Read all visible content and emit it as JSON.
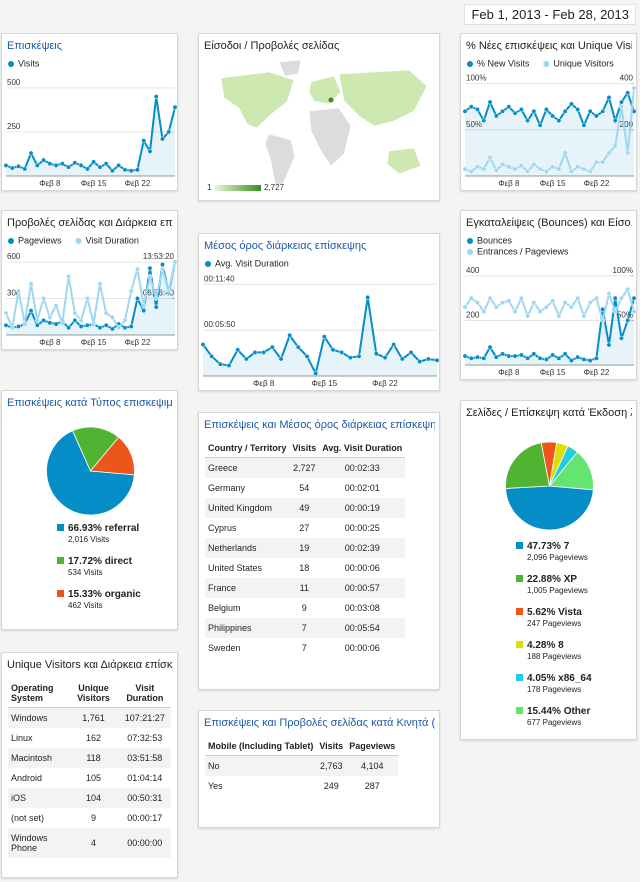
{
  "date_range": "Feb 1, 2013 - Feb 28, 2013",
  "chart_data": [
    {
      "type": "line",
      "title": "Επισκέψεις",
      "categories": [
        null,
        null,
        null,
        null,
        null,
        null,
        null,
        "Φεβ 8",
        null,
        null,
        null,
        null,
        null,
        null,
        "Φεβ 15",
        null,
        null,
        null,
        null,
        null,
        null,
        "Φεβ 22",
        null,
        null,
        null,
        null,
        null,
        null
      ],
      "series": [
        {
          "name": "Visits",
          "color": "#058dc7",
          "values": [
            60,
            45,
            55,
            40,
            130,
            60,
            90,
            70,
            60,
            70,
            50,
            75,
            60,
            40,
            80,
            50,
            70,
            30,
            60,
            35,
            30,
            35,
            200,
            140,
            450,
            210,
            250,
            390
          ]
        }
      ],
      "ylim": [
        0,
        550
      ],
      "yticks": [
        500,
        250
      ],
      "grid": true
    },
    {
      "type": "line",
      "title": "Προβολές σελίδας και Διάρκεια επί...",
      "categories": [
        null,
        null,
        null,
        null,
        null,
        null,
        null,
        "Φεβ 8",
        null,
        null,
        null,
        null,
        null,
        null,
        "Φεβ 15",
        null,
        null,
        null,
        null,
        null,
        null,
        "Φεβ 22",
        null,
        null,
        null,
        null,
        null,
        null
      ],
      "series": [
        {
          "name": "Pageviews",
          "color": "#058dc7",
          "values": [
            80,
            60,
            70,
            90,
            200,
            80,
            120,
            100,
            90,
            110,
            60,
            120,
            70,
            80,
            90,
            60,
            80,
            50,
            90,
            60,
            70,
            300,
            200,
            550,
            230,
            580,
            350,
            600
          ]
        },
        {
          "name": "Visit Duration",
          "color": "#9fd7f1",
          "axis": "y2",
          "values": [
            15000,
            5000,
            30000,
            8000,
            35000,
            10000,
            25000,
            12000,
            20000,
            8000,
            40000,
            15000,
            10000,
            25000,
            8000,
            35000,
            15000,
            12000,
            5000,
            10000,
            30000,
            45000,
            20000,
            40000,
            25000,
            45000,
            30000,
            50000
          ]
        }
      ],
      "ylim": [
        0,
        650
      ],
      "yticks": [
        600,
        300
      ],
      "y2lim": [
        0,
        54000
      ],
      "y2ticks": [
        {
          "value": 50000,
          "label": "13:53:20"
        },
        {
          "value": 25000,
          "label": "06:56:40"
        }
      ],
      "grid": true
    },
    {
      "type": "pie",
      "title": "Επισκέψεις κατά Τύπος επισκεψιμ...",
      "categories": [
        "referral",
        "direct",
        "organic"
      ],
      "values": [
        66.93,
        17.72,
        15.33
      ],
      "value_labels": [
        "66.93%",
        "17.72%",
        "15.33%"
      ],
      "details": [
        "2,016 Visits",
        "534 Visits",
        "462 Visits"
      ],
      "colors": [
        "#058dc7",
        "#50b432",
        "#ed561b"
      ]
    },
    {
      "type": "line",
      "title": "Μέσος όρος διάρκειας επίσκεψης",
      "categories": [
        null,
        null,
        null,
        null,
        null,
        null,
        null,
        "Φεβ 8",
        null,
        null,
        null,
        null,
        null,
        null,
        "Φεβ 15",
        null,
        null,
        null,
        null,
        null,
        null,
        "Φεβ 22",
        null,
        null,
        null,
        null,
        null,
        null
      ],
      "series": [
        {
          "name": "Avg. Visit Duration",
          "color": "#058dc7",
          "values": [
            240,
            150,
            90,
            80,
            200,
            130,
            180,
            180,
            220,
            130,
            310,
            220,
            150,
            20,
            300,
            200,
            180,
            140,
            150,
            600,
            170,
            140,
            240,
            130,
            180,
            110,
            130,
            120
          ]
        }
      ],
      "ylim": [
        0,
        740
      ],
      "yticks": [
        {
          "value": 700,
          "label": "00:11:40"
        },
        {
          "value": 350,
          "label": "00:05:50"
        }
      ],
      "grid": true
    },
    {
      "type": "line",
      "title": "% Νέες επισκέψεις και Unique Visitors",
      "categories": [
        null,
        null,
        null,
        null,
        null,
        null,
        null,
        "Φεβ 8",
        null,
        null,
        null,
        null,
        null,
        null,
        "Φεβ 15",
        null,
        null,
        null,
        null,
        null,
        null,
        "Φεβ 22",
        null,
        null,
        null,
        null,
        null,
        null
      ],
      "series": [
        {
          "name": "% New Visits",
          "color": "#058dc7",
          "values": [
            70,
            75,
            72,
            60,
            80,
            65,
            70,
            75,
            68,
            72,
            60,
            70,
            55,
            72,
            65,
            60,
            70,
            78,
            72,
            55,
            70,
            65,
            70,
            85,
            60,
            80,
            90,
            70
          ]
        },
        {
          "name": "Unique Visitors",
          "color": "#9fd7f1",
          "axis": "y2",
          "values": [
            30,
            20,
            40,
            30,
            80,
            25,
            50,
            40,
            30,
            45,
            20,
            50,
            30,
            20,
            40,
            30,
            100,
            20,
            40,
            30,
            20,
            60,
            60,
            100,
            130,
            300,
            100,
            380
          ]
        }
      ],
      "ylim": [
        0,
        105
      ],
      "yticks": [
        {
          "value": 100,
          "label": "100%"
        },
        {
          "value": 50,
          "label": "50%"
        }
      ],
      "y2lim": [
        0,
        420
      ],
      "y2ticks": [
        400,
        200
      ],
      "grid": true
    },
    {
      "type": "line",
      "title": "Εγκαταλείψεις (Bounces) και Είσο...",
      "categories": [
        null,
        null,
        null,
        null,
        null,
        null,
        null,
        "Φεβ 8",
        null,
        null,
        null,
        null,
        null,
        null,
        "Φεβ 15",
        null,
        null,
        null,
        null,
        null,
        null,
        "Φεβ 22",
        null,
        null,
        null,
        null,
        null,
        null
      ],
      "series": [
        {
          "name": "Bounces",
          "color": "#058dc7",
          "values": [
            40,
            30,
            35,
            30,
            80,
            35,
            50,
            40,
            40,
            45,
            30,
            50,
            30,
            25,
            45,
            30,
            50,
            20,
            35,
            25,
            20,
            30,
            250,
            90,
            300,
            120,
            200,
            300
          ]
        },
        {
          "name": "Entrances / Pageviews",
          "color": "#9fd7f1",
          "axis": "y2",
          "values": [
            65,
            75,
            70,
            60,
            75,
            65,
            70,
            72,
            60,
            75,
            55,
            70,
            60,
            65,
            72,
            55,
            70,
            65,
            75,
            55,
            70,
            75,
            50,
            80,
            60,
            75,
            85,
            60
          ]
        }
      ],
      "ylim": [
        0,
        440
      ],
      "yticks": [
        400,
        200
      ],
      "y2lim": [
        0,
        110
      ],
      "y2ticks": [
        {
          "value": 100,
          "label": "100%"
        },
        {
          "value": 50,
          "label": "50%"
        }
      ],
      "grid": true
    },
    {
      "type": "pie",
      "title": "Σελίδες / Επίσκεψη κατά Έκδοση λ...",
      "categories": [
        "7",
        "XP",
        "Vista",
        "8",
        "x86_64",
        "Other"
      ],
      "values": [
        47.73,
        22.88,
        5.62,
        4.28,
        4.05,
        15.44
      ],
      "value_labels": [
        "47.73%",
        "22.88%",
        "5.62%",
        "4.28%",
        "4.05%",
        "15.44%"
      ],
      "details": [
        "2,096 Pageviews",
        "1,005 Pageviews",
        "247 Pageviews",
        "188 Pageviews",
        "178 Pageviews",
        "677 Pageviews"
      ],
      "colors": [
        "#058dc7",
        "#50b432",
        "#ed561b",
        "#dddf00",
        "#24cbe5",
        "#64e572"
      ]
    }
  ],
  "map": {
    "title": "Είσοδοι / Προβολές σελίδας",
    "scale_min": "1",
    "scale_max": "2,727"
  },
  "tables": [
    {
      "title": "Unique Visitors και Διάρκεια επίσκ...",
      "columns": [
        "Operating System",
        "Unique Visitors",
        "Visit Duration"
      ],
      "rows": [
        [
          "Windows",
          "1,761",
          "107:21:27"
        ],
        [
          "Linux",
          "162",
          "07:32:53"
        ],
        [
          "Macintosh",
          "118",
          "03:51:58"
        ],
        [
          "Android",
          "105",
          "01:04:14"
        ],
        [
          "iOS",
          "104",
          "00:50:31"
        ],
        [
          "(not set)",
          "9",
          "00:00:17"
        ],
        [
          "Windows Phone",
          "4",
          "00:00:00"
        ]
      ]
    },
    {
      "title": "Επισκέψεις και Μέσος όρος διάρκειας επίσκεψης ...",
      "columns": [
        "Country / Territory",
        "Visits",
        "Avg. Visit Duration"
      ],
      "rows": [
        [
          "Greece",
          "2,727",
          "00:02:33"
        ],
        [
          "Germany",
          "54",
          "00:02:01"
        ],
        [
          "United Kingdom",
          "49",
          "00:00:19"
        ],
        [
          "Cyprus",
          "27",
          "00:00:25"
        ],
        [
          "Netherlands",
          "19",
          "00:02:39"
        ],
        [
          "United States",
          "18",
          "00:00:06"
        ],
        [
          "France",
          "11",
          "00:00:57"
        ],
        [
          "Belgium",
          "9",
          "00:03:08"
        ],
        [
          "Philippines",
          "7",
          "00:05:54"
        ],
        [
          "Sweden",
          "7",
          "00:00:06"
        ]
      ]
    },
    {
      "title": "Επισκέψεις και Προβολές σελίδας κατά Κινητά (σ...",
      "columns": [
        "Mobile (Including Tablet)",
        "Visits",
        "Pageviews"
      ],
      "rows": [
        [
          "No",
          "2,763",
          "4,104"
        ],
        [
          "Yes",
          "249",
          "287"
        ]
      ]
    }
  ]
}
